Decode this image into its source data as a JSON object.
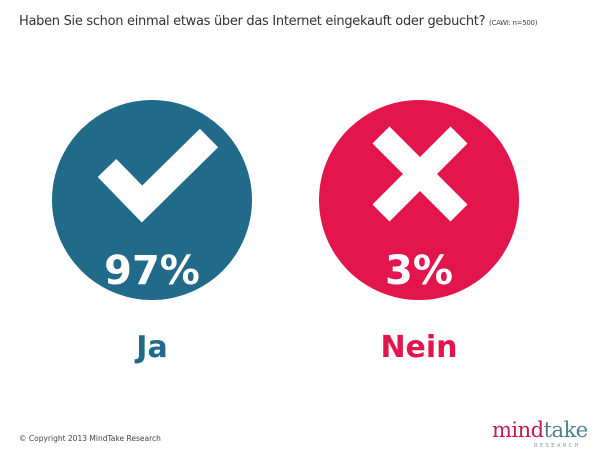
{
  "title": "Haben Sie schon einmal etwas über das Internet eingekauft oder gebucht?",
  "sample_note": "(CAWI: n=500)",
  "copyright": "© Copyright 2013 MindTake Research",
  "logo": {
    "part1": "mind",
    "part2": "take",
    "sub": "RESEARCH"
  },
  "colors": {
    "yes": "#216a8a",
    "no": "#e2154d"
  },
  "chart_data": {
    "type": "pie",
    "title": "Haben Sie schon einmal etwas über das Internet eingekauft oder gebucht?",
    "categories": [
      "Ja",
      "Nein"
    ],
    "values": [
      97,
      3
    ],
    "value_labels": [
      "97%",
      "3%"
    ],
    "icons": [
      "check-icon",
      "cross-icon"
    ]
  }
}
